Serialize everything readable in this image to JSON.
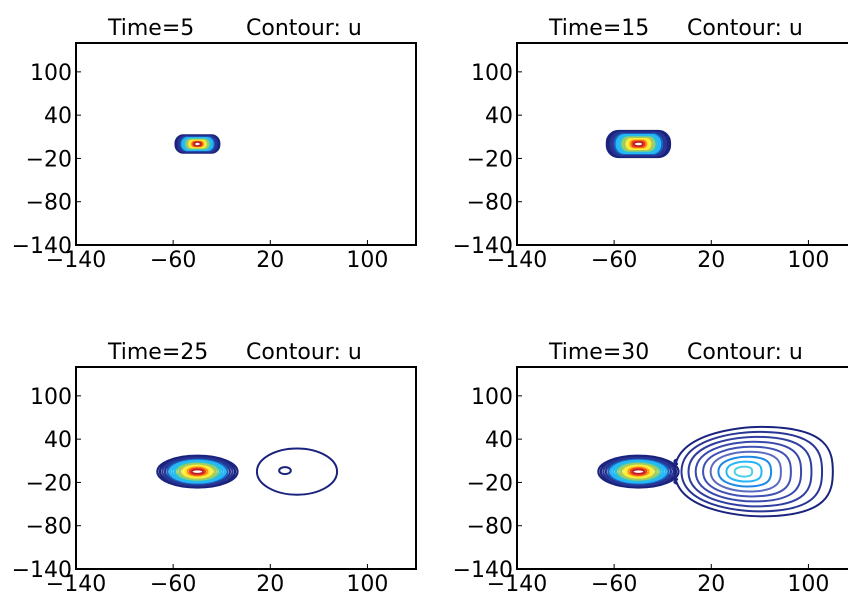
{
  "chart_data": [
    {
      "type": "contour",
      "title": "Time=5",
      "subtitle": "Contour: u",
      "xlim": [
        -140,
        140
      ],
      "ylim": [
        -140,
        140
      ],
      "xticks": [
        "-140",
        "-60",
        "20",
        "100"
      ],
      "yticks": [
        "100",
        "40",
        "-20",
        "-80",
        "-140"
      ],
      "blobs": [
        {
          "cx": -40,
          "cy": 0,
          "rx": 18,
          "ry": 12,
          "levels": 8,
          "shape": "rounded"
        }
      ]
    },
    {
      "type": "contour",
      "title": "Time=15",
      "subtitle": "Contour: u",
      "xlim": [
        -140,
        140
      ],
      "ylim": [
        -140,
        140
      ],
      "xticks": [
        "-140",
        "-60",
        "20",
        "100"
      ],
      "yticks": [
        "100",
        "40",
        "-20",
        "-80",
        "-140"
      ],
      "blobs": [
        {
          "cx": -40,
          "cy": 0,
          "rx": 26,
          "ry": 18,
          "levels": 8,
          "shape": "rounded"
        }
      ]
    },
    {
      "type": "contour",
      "title": "Time=25",
      "subtitle": "Contour: u",
      "xlim": [
        -140,
        140
      ],
      "ylim": [
        -140,
        140
      ],
      "xticks": [
        "-140",
        "-60",
        "20",
        "100"
      ],
      "yticks": [
        "100",
        "40",
        "-20",
        "-80",
        "-140"
      ],
      "blobs": [
        {
          "cx": -40,
          "cy": -5,
          "rx": 33,
          "ry": 22,
          "levels": 8,
          "shape": "ellipse"
        },
        {
          "cx": 42,
          "cy": -5,
          "rx": 33,
          "ry": 32,
          "levels": 1,
          "shape": "ring",
          "inner": [
            3,
            4
          ]
        }
      ]
    },
    {
      "type": "contour",
      "title": "Time=30",
      "subtitle": "Contour: u",
      "xlim": [
        -140,
        140
      ],
      "ylim": [
        -140,
        140
      ],
      "xticks": [
        "-140",
        "-60",
        "20",
        "100"
      ],
      "yticks": [
        "100",
        "40",
        "-20",
        "-80",
        "-140"
      ],
      "blobs": [
        {
          "cx": -40,
          "cy": -5,
          "rx": 33,
          "ry": 22,
          "levels": 8,
          "shape": "ellipse"
        },
        {
          "cx": 55,
          "cy": -5,
          "rx": 62,
          "ry": 62,
          "levels": 9,
          "shape": "pear"
        }
      ]
    }
  ],
  "colors": {
    "contour_levels": [
      "#1a237e",
      "#283593",
      "#1565c0",
      "#29b6f6",
      "#26c6da",
      "#9ccc65",
      "#ffeb3b",
      "#ff9800",
      "#e53935",
      "#b71c1c"
    ],
    "right_palette": [
      "#1a237e",
      "#283593",
      "#303f9f",
      "#3949ab",
      "#3f51b5",
      "#5c6bc0",
      "#1e88e5",
      "#29b6f6",
      "#4dd0e1",
      "#80deea"
    ]
  }
}
